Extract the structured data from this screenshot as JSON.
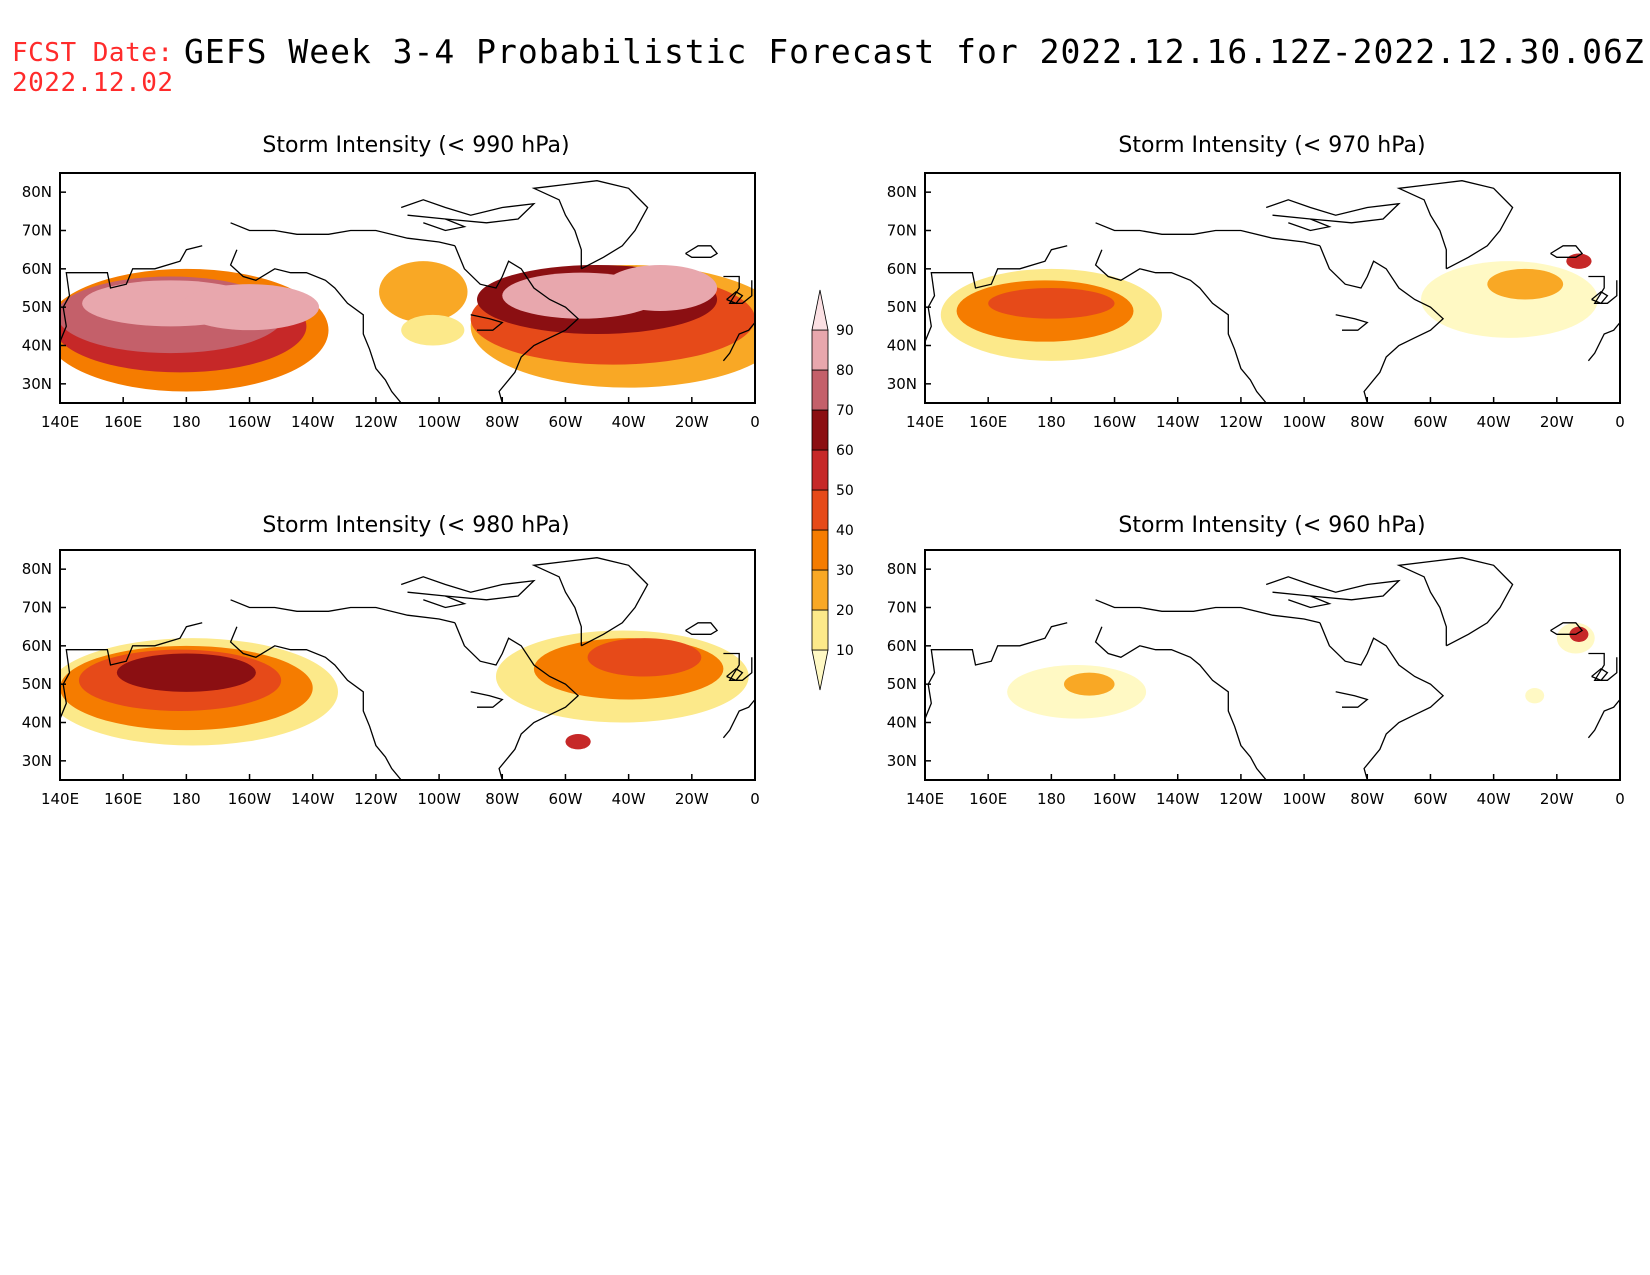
{
  "header": {
    "fcst_label": "FCST Date:",
    "fcst_date": "2022.12.02",
    "title": "GEFS Week 3-4 Probabilistic Forecast for 2022.12.16.12Z-2022.12.30.06Z"
  },
  "colors": {
    "c10": "#fff9c4",
    "c20": "#fce98a",
    "c30": "#f9a825",
    "c40": "#f57c00",
    "c50": "#e64a19",
    "c60": "#c62828",
    "c70": "#8b0f12",
    "c80": "#c4606a",
    "c90": "#e8a7ad",
    "c100": "#fbe0e3",
    "coast": "#000000"
  },
  "axes": {
    "lon_ticks": [
      "140E",
      "160E",
      "180",
      "160W",
      "140W",
      "120W",
      "100W",
      "80W",
      "60W",
      "40W",
      "20W",
      "0"
    ],
    "lat_ticks": [
      "80N",
      "70N",
      "60N",
      "50N",
      "40N",
      "30N"
    ]
  },
  "colorbar": {
    "labels": [
      "10",
      "20",
      "30",
      "40",
      "50",
      "60",
      "70",
      "80",
      "90"
    ]
  },
  "panels": [
    {
      "title": "Storm Intensity (< 990 hPa)",
      "blobs": [
        {
          "lon": 175,
          "lat": 51,
          "rx": 28,
          "ry": 6,
          "level": 9
        },
        {
          "lon": 200,
          "lat": 50,
          "rx": 22,
          "ry": 6,
          "level": 9
        },
        {
          "lon": 175,
          "lat": 48,
          "rx": 36,
          "ry": 10,
          "level": 8
        },
        {
          "lon": 178,
          "lat": 45,
          "rx": 40,
          "ry": 12,
          "level": 6
        },
        {
          "lon": 180,
          "lat": 44,
          "rx": 45,
          "ry": 16,
          "level": 4
        },
        {
          "lon": 305,
          "lat": 53,
          "rx": 25,
          "ry": 6,
          "level": 9
        },
        {
          "lon": 330,
          "lat": 55,
          "rx": 18,
          "ry": 6,
          "level": 9
        },
        {
          "lon": 310,
          "lat": 52,
          "rx": 38,
          "ry": 9,
          "level": 7
        },
        {
          "lon": 315,
          "lat": 47,
          "rx": 45,
          "ry": 12,
          "level": 5
        },
        {
          "lon": 320,
          "lat": 45,
          "rx": 50,
          "ry": 16,
          "level": 3
        },
        {
          "lon": 255,
          "lat": 54,
          "rx": 14,
          "ry": 8,
          "level": 3
        },
        {
          "lon": 258,
          "lat": 44,
          "rx": 10,
          "ry": 4,
          "level": 2
        }
      ]
    },
    {
      "title": "Storm Intensity (< 970 hPa)",
      "blobs": [
        {
          "lon": 180,
          "lat": 51,
          "rx": 20,
          "ry": 4,
          "level": 5
        },
        {
          "lon": 178,
          "lat": 49,
          "rx": 28,
          "ry": 8,
          "level": 4
        },
        {
          "lon": 180,
          "lat": 48,
          "rx": 35,
          "ry": 12,
          "level": 2
        },
        {
          "lon": 330,
          "lat": 56,
          "rx": 12,
          "ry": 4,
          "level": 3
        },
        {
          "lon": 325,
          "lat": 52,
          "rx": 28,
          "ry": 10,
          "level": 1
        },
        {
          "lon": 347,
          "lat": 62,
          "rx": 4,
          "ry": 2,
          "level": 6
        }
      ]
    },
    {
      "title": "Storm Intensity (< 980 hPa)",
      "blobs": [
        {
          "lon": 180,
          "lat": 53,
          "rx": 22,
          "ry": 5,
          "level": 7
        },
        {
          "lon": 178,
          "lat": 51,
          "rx": 32,
          "ry": 8,
          "level": 5
        },
        {
          "lon": 180,
          "lat": 49,
          "rx": 40,
          "ry": 11,
          "level": 4
        },
        {
          "lon": 182,
          "lat": 48,
          "rx": 46,
          "ry": 14,
          "level": 2
        },
        {
          "lon": 325,
          "lat": 57,
          "rx": 18,
          "ry": 5,
          "level": 5
        },
        {
          "lon": 320,
          "lat": 54,
          "rx": 30,
          "ry": 8,
          "level": 4
        },
        {
          "lon": 318,
          "lat": 52,
          "rx": 40,
          "ry": 12,
          "level": 2
        },
        {
          "lon": 304,
          "lat": 35,
          "rx": 4,
          "ry": 2,
          "level": 6
        }
      ]
    },
    {
      "title": "Storm Intensity (< 960 hPa)",
      "blobs": [
        {
          "lon": 192,
          "lat": 50,
          "rx": 8,
          "ry": 3,
          "level": 3
        },
        {
          "lon": 188,
          "lat": 48,
          "rx": 22,
          "ry": 7,
          "level": 1
        },
        {
          "lon": 347,
          "lat": 63,
          "rx": 3,
          "ry": 2,
          "level": 6
        },
        {
          "lon": 346,
          "lat": 62,
          "rx": 6,
          "ry": 4,
          "level": 1
        },
        {
          "lon": 333,
          "lat": 47,
          "rx": 3,
          "ry": 2,
          "level": 1
        }
      ]
    }
  ]
}
